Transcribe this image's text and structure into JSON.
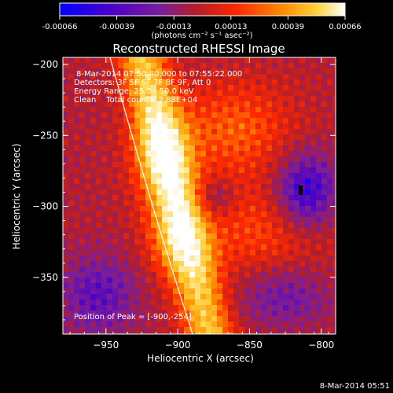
{
  "colorbar": {
    "tick_labels": [
      "-0.00066",
      "-0.00039",
      "-0.00013",
      "0.00013",
      "0.00039",
      "0.00066"
    ],
    "units": "(photons cm⁻² s⁻¹ asec⁻²)",
    "colors": [
      "#0000ff",
      "#4b00c8",
      "#7a1e9a",
      "#b41e28",
      "#ff2800",
      "#ff8c00",
      "#ffd23c",
      "#ffffff"
    ]
  },
  "plot": {
    "title": "Reconstructed RHESSI Image",
    "xlabel": "Heliocentric X (arcsec)",
    "ylabel": "Heliocentric Y (arcsec)",
    "xticks": [
      "-950",
      "-900",
      "-850",
      "-800"
    ],
    "yticks": [
      "-200",
      "-250",
      "-300",
      "-350"
    ],
    "xlim": [
      -980,
      -790
    ],
    "ylim": [
      -390,
      -195
    ]
  },
  "annotations": {
    "time_range": "8-Mar-2014 07:50:40.000 to 07:55:22.000",
    "detectors": "Detectors: 3F 5F 6F 7F 8F 9F, Att 0",
    "energy": "Energy Range: 25.0 - 50.0 keV",
    "clean": "Clean    Total counts: 2.88E+04",
    "peak": "Position of Peak = [-900,-254]"
  },
  "footer": {
    "timestamp": "8-Mar-2014 05:51"
  }
}
